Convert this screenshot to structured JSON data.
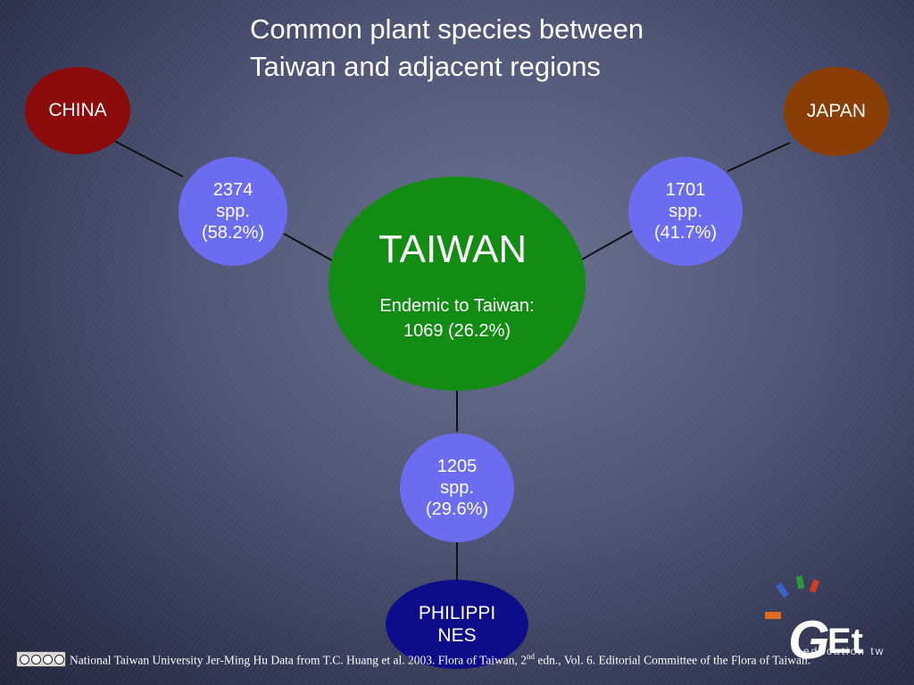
{
  "title": {
    "line1": "Common plant species between",
    "line2": "Taiwan and adjacent regions"
  },
  "regions": {
    "china": "CHINA",
    "japan": "JAPAN",
    "philippines_line1": "PHILIPPI",
    "philippines_line2": "NES"
  },
  "taiwan": {
    "name": "TAIWAN",
    "endemic_line1": "Endemic to Taiwan:",
    "endemic_line2": "1069 (26.2%)"
  },
  "shared": {
    "china": {
      "count": "2374",
      "unit": "spp.",
      "pct": "(58.2%)"
    },
    "japan": {
      "count": "1701",
      "unit": "spp.",
      "pct": "(41.7%)"
    },
    "philippines": {
      "count": "1205",
      "unit": "spp.",
      "pct": "(29.6%)"
    }
  },
  "footer": {
    "text_part1": "National Taiwan University Jer-Ming Hu Data from T.C. Huang et al. 2003. Flora of Taiwan, 2",
    "superscript": "nd",
    "text_part2": " edn., Vol. 6. Editorial Committee of the Flora of Taiwan.",
    "logo_text": "education tw"
  },
  "colors": {
    "china": "#8b0b0b",
    "japan": "#8a3d05",
    "taiwan": "#138c13",
    "shared": "#6c6cf0",
    "philippines": "#0d0d8a"
  }
}
